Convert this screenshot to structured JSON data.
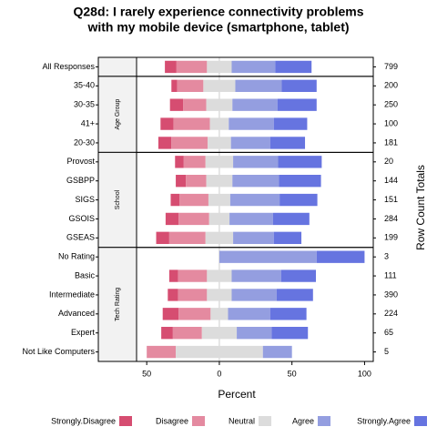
{
  "chart_data": {
    "type": "diverging_bar",
    "title": [
      "Q28d: I rarely experience connectivity problems",
      "with my mobile device (smartphone, tablet)"
    ],
    "xlabel": "Percent",
    "right_label": "Row Count Totals",
    "categories": [
      "All Responses",
      "35-40",
      "30-35",
      "41+",
      "20-30",
      "Provost",
      "GSBPP",
      "SIGS",
      "GSOIS",
      "GSEAS",
      "No Rating",
      "Basic",
      "Intermediate",
      "Advanced",
      "Expert",
      "Not Like Computers"
    ],
    "totals": [
      799,
      200,
      250,
      100,
      181,
      20,
      144,
      151,
      284,
      199,
      3,
      111,
      390,
      224,
      65,
      5
    ],
    "panels": [
      {
        "rows": 1
      },
      {
        "strip": "Age Group",
        "rows": 4
      },
      {
        "strip": "School",
        "rows": 5
      },
      {
        "strip": "Tech Rating",
        "rows": 6
      }
    ],
    "series": [
      {
        "name": "Strongly.Disagree",
        "color": "#d64d71",
        "values": [
          8,
          4,
          9,
          9,
          9,
          6,
          7,
          6,
          9,
          9,
          0,
          6,
          7,
          11,
          8,
          0
        ]
      },
      {
        "name": "Disagree",
        "color": "#e48aa0",
        "values": [
          21,
          18,
          16,
          25,
          25,
          15,
          14,
          20,
          21,
          25,
          0,
          20,
          20,
          22,
          20,
          20
        ]
      },
      {
        "name": "Neutral",
        "color": "#dcdcdc",
        "values": [
          17,
          22,
          18,
          13,
          16,
          19,
          18,
          15,
          14,
          19,
          0,
          17,
          17,
          12,
          24,
          60
        ]
      },
      {
        "name": "Agree",
        "color": "#949ee0",
        "values": [
          30,
          32,
          31,
          31,
          27,
          31,
          32,
          34,
          30,
          28,
          67,
          34,
          31,
          29,
          24,
          20
        ]
      },
      {
        "name": "Strongly.Agree",
        "color": "#6674e0",
        "values": [
          25,
          24,
          27,
          23,
          24,
          30,
          29,
          26,
          25,
          19,
          33,
          24,
          25,
          25,
          25,
          0
        ]
      }
    ],
    "xlim": [
      -57,
      106
    ],
    "xticks": [
      {
        "value": -50,
        "label": "50"
      },
      0,
      50,
      100
    ]
  }
}
